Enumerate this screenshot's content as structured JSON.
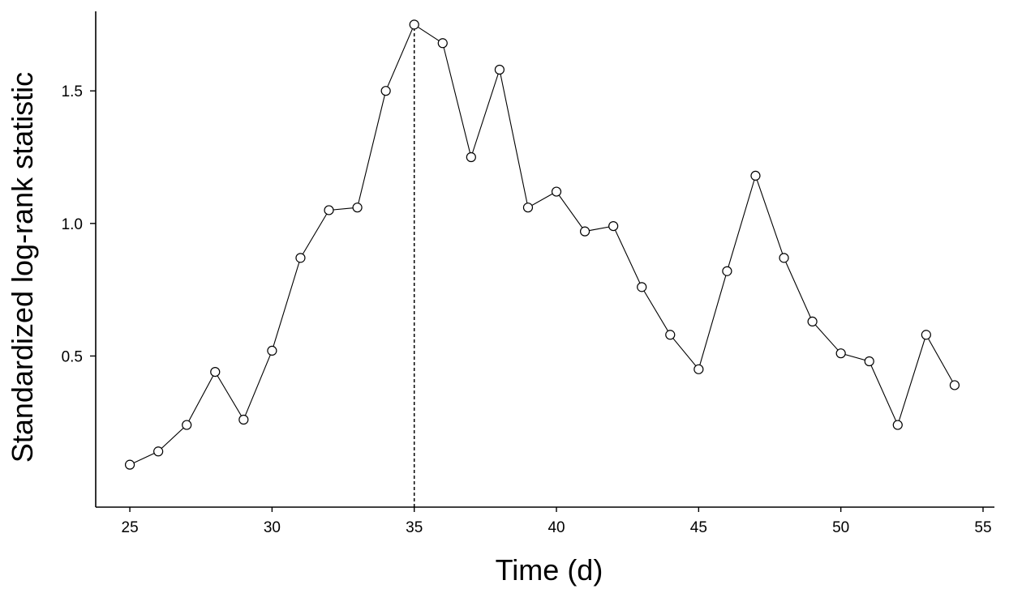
{
  "chart_data": {
    "type": "line",
    "title": "",
    "xlabel": "Time (d)",
    "ylabel": "Standardized log-rank statistic",
    "xlim": [
      23.8,
      55.4
    ],
    "ylim": [
      -0.07,
      1.8
    ],
    "xticks": [
      25,
      30,
      35,
      40,
      45,
      50,
      55
    ],
    "yticks": [
      0.5,
      1.0,
      1.5
    ],
    "ytick_labels": [
      "0.5",
      "1.0",
      "1.5"
    ],
    "grid": false,
    "legend": "none",
    "line_color": "#000000",
    "marker": "open-circle",
    "reference_line": {
      "x": 35,
      "style": "dashed",
      "from_y": -0.07,
      "to_y": 1.75
    },
    "series": [
      {
        "x": [
          25,
          26,
          27,
          28,
          29,
          30,
          31,
          32,
          33,
          34,
          35,
          36,
          37,
          38,
          39,
          40,
          41,
          42,
          43,
          44,
          45,
          46,
          47,
          48,
          49,
          50,
          51,
          52,
          53,
          54
        ],
        "y": [
          0.09,
          0.14,
          0.24,
          0.44,
          0.26,
          0.52,
          0.87,
          1.05,
          1.06,
          1.5,
          1.75,
          1.68,
          1.25,
          1.58,
          1.06,
          1.12,
          0.97,
          0.99,
          0.76,
          0.58,
          0.45,
          0.82,
          1.18,
          0.87,
          0.63,
          0.51,
          0.48,
          0.24,
          0.58,
          0.39
        ]
      }
    ]
  }
}
